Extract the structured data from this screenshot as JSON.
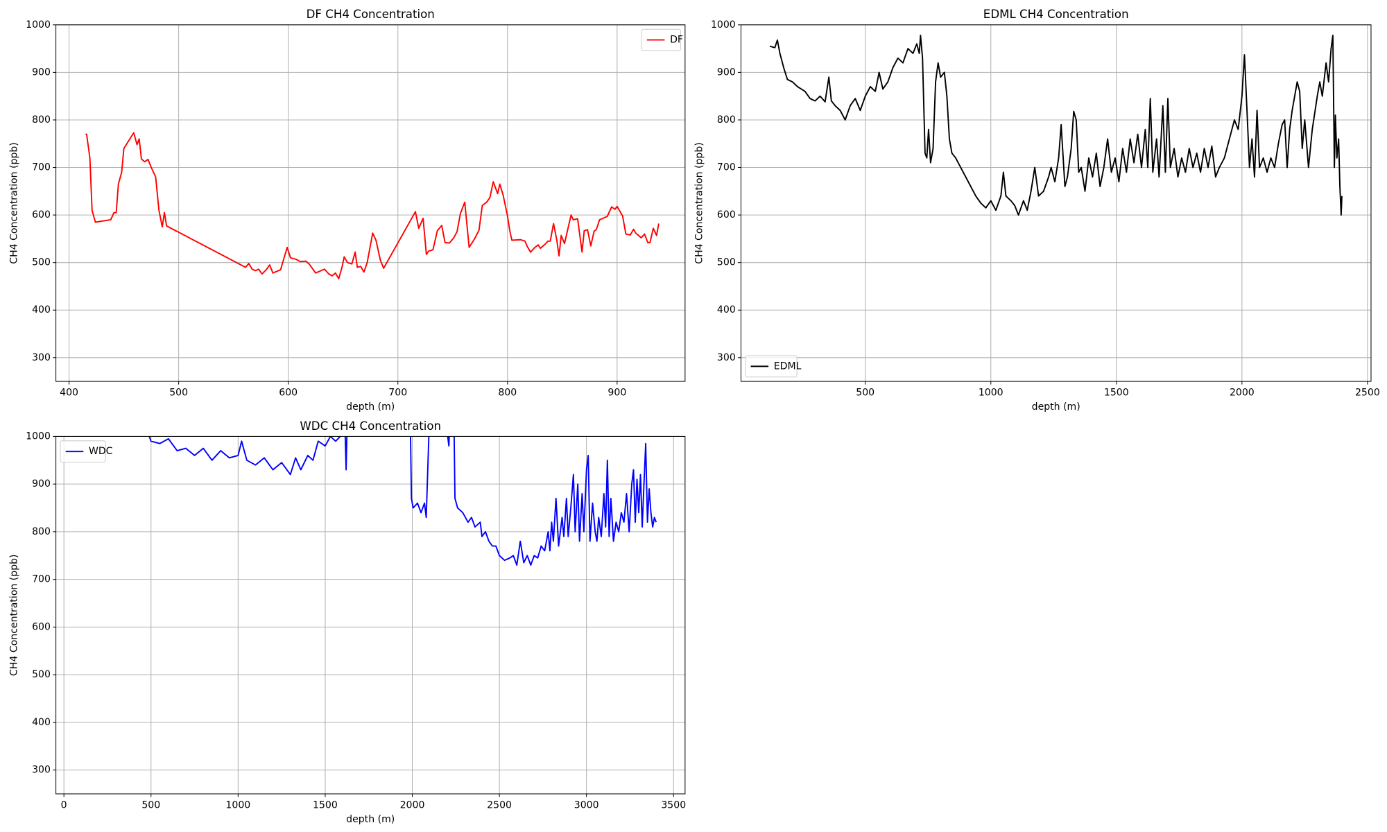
{
  "chart_data": [
    {
      "type": "line",
      "title": "DF CH4 Concentration",
      "xlabel": "depth (m)",
      "ylabel": "CH4 Concentration (ppb)",
      "x": [
        415,
        416,
        419,
        421,
        424,
        438,
        441,
        443,
        445,
        448,
        450,
        459,
        462,
        464,
        466,
        469,
        472,
        475,
        479,
        482,
        485,
        487,
        489,
        561,
        564,
        567,
        570,
        573,
        576,
        580,
        583,
        586,
        593,
        599,
        602,
        607,
        611,
        616,
        619,
        625,
        633,
        637,
        640,
        643,
        646,
        649,
        651,
        654,
        658,
        661,
        663,
        666,
        669,
        672,
        677,
        680,
        684,
        687,
        716,
        719,
        723,
        726,
        728,
        732,
        736,
        740,
        743,
        747,
        751,
        754,
        757,
        761,
        765,
        770,
        774,
        777,
        781,
        784,
        787,
        791,
        793,
        796,
        800,
        802,
        804,
        812,
        816,
        818,
        821,
        825,
        828,
        830,
        834,
        837,
        839,
        842,
        845,
        847,
        849,
        852,
        858,
        860,
        864,
        868,
        870,
        873,
        876,
        879,
        881,
        884,
        888,
        891,
        895,
        898,
        900,
        902,
        905,
        908,
        912,
        915,
        917,
        919,
        922,
        925,
        928,
        930,
        933,
        936,
        938
      ],
      "series": [
        {
          "name": "DF",
          "color": "#ff0000",
          "values": [
            770,
            770,
            720,
            610,
            585,
            590,
            605,
            605,
            665,
            690,
            740,
            773,
            748,
            760,
            718,
            712,
            717,
            700,
            680,
            610,
            575,
            605,
            577,
            490,
            498,
            486,
            483,
            486,
            476,
            485,
            495,
            478,
            485,
            532,
            510,
            507,
            502,
            503,
            497,
            478,
            486,
            476,
            472,
            478,
            466,
            490,
            512,
            500,
            497,
            522,
            490,
            492,
            480,
            500,
            562,
            547,
            505,
            488,
            607,
            572,
            593,
            517,
            524,
            527,
            567,
            578,
            542,
            541,
            552,
            565,
            603,
            627,
            532,
            550,
            568,
            620,
            627,
            637,
            670,
            645,
            665,
            642,
            598,
            568,
            547,
            548,
            545,
            534,
            522,
            532,
            537,
            530,
            538,
            545,
            545,
            582,
            547,
            514,
            557,
            540,
            600,
            590,
            592,
            522,
            567,
            569,
            535,
            566,
            569,
            590,
            594,
            597,
            617,
            612,
            618,
            610,
            598,
            560,
            558,
            570,
            562,
            558,
            552,
            560,
            542,
            542,
            572,
            557,
            582
          ]
        }
      ],
      "xlim": [
        388,
        962
      ],
      "ylim": [
        250,
        1000
      ],
      "xticks": [
        400,
        500,
        600,
        700,
        800,
        900
      ],
      "yticks": [
        300,
        400,
        500,
        600,
        700,
        800,
        900,
        1000
      ],
      "grid": true,
      "legend": "upper right"
    },
    {
      "type": "line",
      "title": "EDML CH4 Concentration",
      "xlabel": "depth (m)",
      "ylabel": "CH4 Concentration (ppb)",
      "x": [
        120,
        140,
        150,
        160,
        175,
        190,
        210,
        230,
        260,
        280,
        300,
        320,
        340,
        355,
        365,
        380,
        400,
        420,
        440,
        460,
        480,
        500,
        520,
        540,
        555,
        570,
        590,
        610,
        630,
        650,
        670,
        690,
        705,
        715,
        720,
        728,
        732,
        738,
        745,
        752,
        760,
        770,
        780,
        790,
        800,
        815,
        825,
        835,
        845,
        860,
        880,
        900,
        920,
        940,
        960,
        980,
        1000,
        1020,
        1040,
        1050,
        1060,
        1080,
        1095,
        1110,
        1130,
        1145,
        1160,
        1175,
        1190,
        1210,
        1230,
        1240,
        1255,
        1270,
        1280,
        1295,
        1305,
        1320,
        1330,
        1340,
        1350,
        1360,
        1375,
        1390,
        1405,
        1420,
        1435,
        1450,
        1465,
        1480,
        1495,
        1510,
        1525,
        1540,
        1555,
        1570,
        1585,
        1600,
        1615,
        1625,
        1635,
        1645,
        1660,
        1670,
        1685,
        1695,
        1705,
        1715,
        1730,
        1745,
        1760,
        1775,
        1790,
        1805,
        1820,
        1835,
        1850,
        1865,
        1880,
        1895,
        1910,
        1930,
        1950,
        1970,
        1985,
        2000,
        2010,
        2020,
        2030,
        2040,
        2050,
        2060,
        2070,
        2085,
        2100,
        2115,
        2130,
        2145,
        2160,
        2170,
        2180,
        2190,
        2200,
        2210,
        2220,
        2230,
        2240,
        2250,
        2265,
        2280,
        2300,
        2310,
        2320,
        2335,
        2345,
        2355,
        2362,
        2368,
        2372,
        2378,
        2385,
        2390,
        2395,
        2398
      ],
      "series": [
        {
          "name": "EDML",
          "color": "#000000",
          "values": [
            955,
            952,
            968,
            940,
            910,
            885,
            880,
            870,
            860,
            845,
            840,
            850,
            838,
            890,
            840,
            830,
            820,
            800,
            830,
            845,
            820,
            850,
            870,
            860,
            900,
            865,
            880,
            910,
            930,
            920,
            950,
            940,
            960,
            940,
            978,
            930,
            850,
            730,
            720,
            780,
            710,
            740,
            880,
            920,
            890,
            900,
            850,
            760,
            730,
            720,
            700,
            680,
            660,
            640,
            625,
            615,
            630,
            610,
            640,
            690,
            640,
            630,
            620,
            600,
            630,
            610,
            650,
            700,
            640,
            650,
            680,
            700,
            670,
            720,
            790,
            660,
            680,
            740,
            818,
            800,
            690,
            700,
            650,
            720,
            680,
            730,
            660,
            700,
            760,
            690,
            720,
            670,
            740,
            690,
            760,
            710,
            770,
            700,
            780,
            700,
            845,
            690,
            760,
            680,
            830,
            690,
            845,
            700,
            740,
            680,
            720,
            690,
            740,
            700,
            730,
            690,
            740,
            700,
            745,
            680,
            700,
            720,
            760,
            800,
            780,
            850,
            937,
            820,
            700,
            760,
            680,
            820,
            700,
            720,
            690,
            720,
            700,
            750,
            790,
            800,
            700,
            780,
            820,
            850,
            880,
            860,
            740,
            800,
            700,
            780,
            850,
            880,
            850,
            920,
            880,
            950,
            978,
            700,
            810,
            720,
            760,
            660,
            600,
            640
          ]
        }
      ],
      "xlim": [
        5,
        2514
      ],
      "ylim": [
        250,
        1000
      ],
      "xticks": [
        500,
        1000,
        1500,
        2000,
        2500
      ],
      "yticks": [
        300,
        400,
        500,
        600,
        700,
        800,
        900,
        1000
      ],
      "grid": true,
      "legend": "lower left"
    },
    {
      "type": "line",
      "title": "WDC CH4 Concentration",
      "xlabel": "depth (m)",
      "ylabel": "CH4 Concentration (ppb)",
      "x": [
        490,
        500,
        550,
        600,
        650,
        700,
        750,
        800,
        850,
        900,
        950,
        1000,
        1020,
        1050,
        1100,
        1150,
        1200,
        1250,
        1300,
        1330,
        1360,
        1400,
        1430,
        1460,
        1500,
        1530,
        1560,
        1600,
        1615,
        1620,
        1625,
        1700,
        1800,
        1900,
        1980,
        1990,
        1995,
        2005,
        2030,
        2050,
        2070,
        2080,
        2095,
        2110,
        2150,
        2200,
        2210,
        2215,
        2240,
        2245,
        2260,
        2290,
        2320,
        2340,
        2360,
        2390,
        2400,
        2420,
        2440,
        2460,
        2480,
        2500,
        2530,
        2560,
        2580,
        2600,
        2620,
        2640,
        2660,
        2680,
        2700,
        2720,
        2740,
        2760,
        2780,
        2790,
        2800,
        2810,
        2825,
        2840,
        2860,
        2870,
        2885,
        2895,
        2910,
        2925,
        2935,
        2950,
        2960,
        2975,
        2985,
        3000,
        3010,
        3020,
        3035,
        3050,
        3060,
        3070,
        3085,
        3100,
        3110,
        3120,
        3130,
        3140,
        3155,
        3170,
        3185,
        3200,
        3215,
        3230,
        3245,
        3260,
        3270,
        3280,
        3290,
        3300,
        3310,
        3320,
        3330,
        3340,
        3350,
        3360,
        3370,
        3380,
        3390,
        3400
      ],
      "series": [
        {
          "name": "WDC",
          "color": "#0000ff",
          "values": [
            1000,
            990,
            985,
            995,
            970,
            975,
            960,
            975,
            950,
            970,
            955,
            960,
            990,
            950,
            940,
            955,
            930,
            945,
            920,
            955,
            930,
            960,
            950,
            990,
            980,
            1000,
            990,
            1005,
            1000,
            930,
            1010,
            1050,
            1080,
            1060,
            1020,
            1000,
            870,
            850,
            860,
            840,
            860,
            830,
            1000,
            1080,
            1060,
            1010,
            980,
            1030,
            1010,
            870,
            850,
            840,
            820,
            830,
            810,
            820,
            790,
            800,
            780,
            770,
            770,
            750,
            740,
            745,
            750,
            730,
            780,
            735,
            750,
            730,
            750,
            745,
            770,
            760,
            800,
            760,
            820,
            780,
            870,
            770,
            830,
            790,
            870,
            790,
            850,
            920,
            800,
            900,
            780,
            880,
            800,
            930,
            960,
            780,
            860,
            800,
            780,
            830,
            790,
            880,
            810,
            950,
            790,
            870,
            780,
            820,
            800,
            840,
            820,
            880,
            800,
            900,
            930,
            820,
            910,
            840,
            920,
            810,
            900,
            985,
            820,
            890,
            840,
            810,
            830,
            820
          ]
        }
      ],
      "xlim": [
        -46,
        3566
      ],
      "ylim": [
        250,
        1000
      ],
      "xticks": [
        0,
        500,
        1000,
        1500,
        2000,
        2500,
        3000,
        3500
      ],
      "yticks": [
        300,
        400,
        500,
        600,
        700,
        800,
        900,
        1000
      ],
      "grid": true,
      "legend": "upper left"
    }
  ]
}
